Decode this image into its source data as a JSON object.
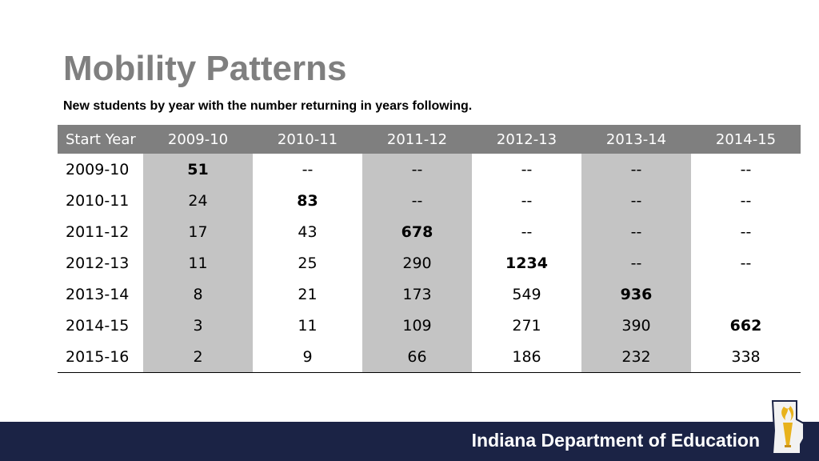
{
  "title": "Mobility Patterns",
  "subtitle": "New students by year with the number returning in years following.",
  "table": {
    "headers": [
      "Start Year",
      "2009-10",
      "2010-11",
      "2011-12",
      "2012-13",
      "2013-14",
      "2014-15"
    ],
    "rows": [
      [
        "2009-10",
        "51",
        "--",
        "--",
        "--",
        "--",
        "--"
      ],
      [
        "2010-11",
        "24",
        "83",
        "--",
        "--",
        "--",
        "--"
      ],
      [
        "2011-12",
        "17",
        "43",
        "678",
        "--",
        "--",
        "--"
      ],
      [
        "2012-13",
        "11",
        "25",
        "290",
        "1234",
        "--",
        "--"
      ],
      [
        "2013-14",
        "8",
        "21",
        "173",
        "549",
        "936",
        ""
      ],
      [
        "2014-15",
        "3",
        "11",
        "109",
        "271",
        "390",
        "662"
      ],
      [
        "2015-16",
        "2",
        "9",
        "66",
        "186",
        "232",
        "338"
      ]
    ]
  },
  "footer": {
    "org_name": "Indiana Department of Education",
    "logo_icon": "indiana-state-torch-icon"
  },
  "colors": {
    "header_bg": "#7f7f7f",
    "shaded_column": "#c4c4c4",
    "footer_bg": "#1b2345",
    "title_color": "#7f7f7f",
    "logo_gold": "#e8b21c"
  }
}
